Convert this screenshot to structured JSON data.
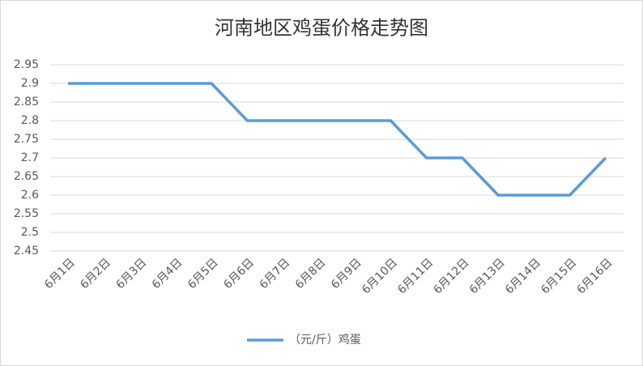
{
  "chart_data": {
    "type": "line",
    "title": "河南地区鸡蛋价格走势图",
    "categories": [
      "6月1日",
      "6月2日",
      "6月3日",
      "6月4日",
      "6月5日",
      "6月6日",
      "6月7日",
      "6月8日",
      "6月9日",
      "6月10日",
      "6月11日",
      "6月12日",
      "6月13日",
      "6月14日",
      "6月15日",
      "6月16日"
    ],
    "series": [
      {
        "name": "（元/斤）鸡蛋",
        "color": "#5b9bd5",
        "values": [
          2.9,
          2.9,
          2.9,
          2.9,
          2.9,
          2.8,
          2.8,
          2.8,
          2.8,
          2.8,
          2.7,
          2.7,
          2.6,
          2.6,
          2.6,
          2.7
        ]
      }
    ],
    "ylim": [
      2.45,
      2.95
    ],
    "yticks": [
      2.45,
      2.5,
      2.55,
      2.6,
      2.65,
      2.7,
      2.75,
      2.8,
      2.85,
      2.9,
      2.95
    ],
    "grid": true,
    "legend": "bottom"
  }
}
